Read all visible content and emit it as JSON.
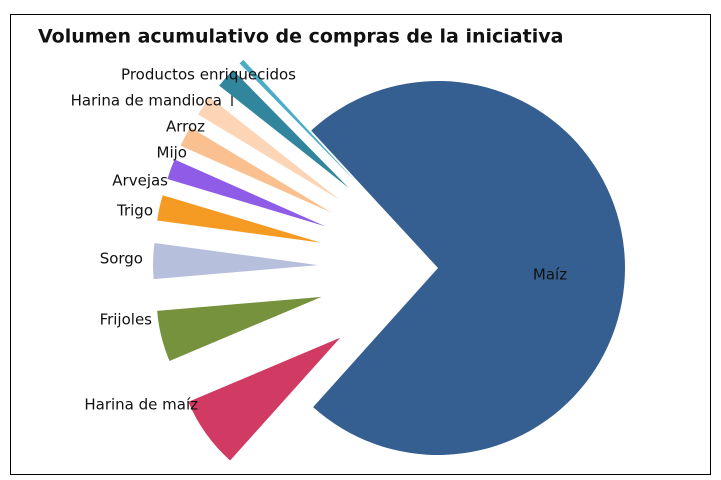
{
  "chart_data": {
    "type": "pie",
    "title": "Volumen acumulativo de compras de la iniciativa",
    "categories": [
      "Maíz",
      "Harina de maíz",
      "Frijoles",
      "Sorgo",
      "Trigo",
      "Arvejas",
      "Mijo",
      "Arroz",
      "Harina de mandioca",
      "Productos enriquecidos"
    ],
    "values": [
      73.5,
      7,
      5,
      3.5,
      2.5,
      2,
      2,
      2,
      2,
      0.5
    ],
    "colors": [
      "#365f91",
      "#d13a63",
      "#76923c",
      "#b6bfdc",
      "#f59a23",
      "#8f5ce8",
      "#fac090",
      "#fbd5b5",
      "#31859c",
      "#4bacc6"
    ]
  }
}
